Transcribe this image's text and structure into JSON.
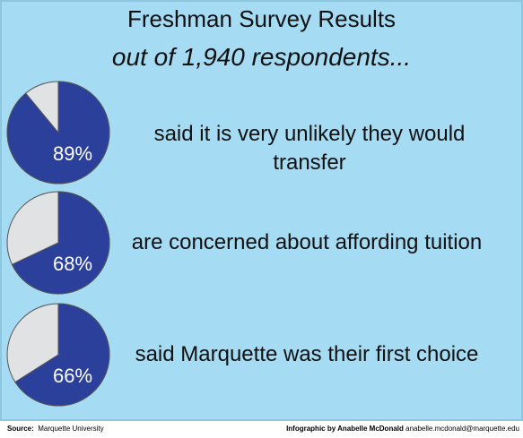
{
  "title": "Freshman Survey Results",
  "subtitle": "out of 1,940 respondents...",
  "chart_data": [
    {
      "type": "pie",
      "values": [
        89
      ],
      "value_labels": [
        "89%"
      ],
      "color": "#2b409b",
      "annotation": "said it is very unlikely they would transfer"
    },
    {
      "type": "pie",
      "values": [
        68
      ],
      "value_labels": [
        "68%"
      ],
      "color": "#2b409b",
      "annotation": "are concerned about affording tuition"
    },
    {
      "type": "pie",
      "values": [
        66
      ],
      "value_labels": [
        "66%"
      ],
      "color": "#2b409b",
      "annotation": "said Marquette was their first choice"
    }
  ],
  "footer": {
    "source_label": "Source:",
    "source": "Marquette University",
    "credit": "Infographic by Anabelle McDonald",
    "email": "anabelle.mcdonald@marquette.edu"
  }
}
